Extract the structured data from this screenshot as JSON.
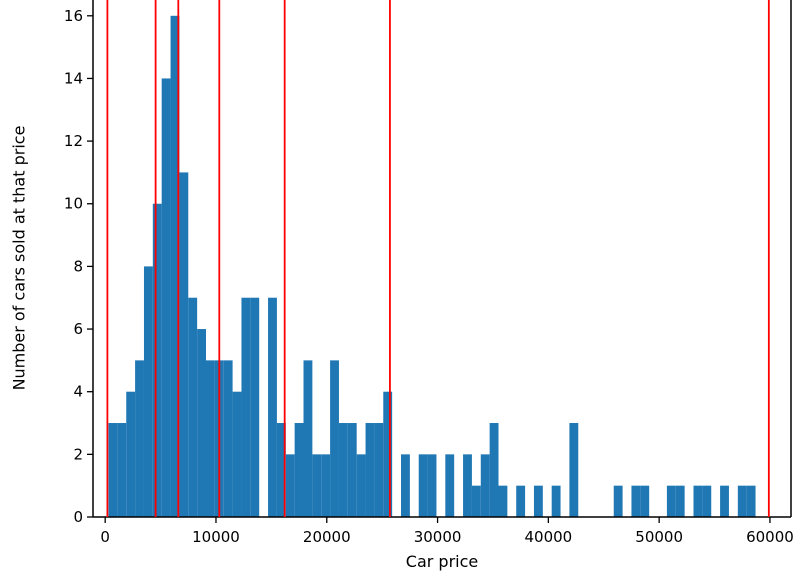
{
  "chart_data": {
    "type": "bar",
    "subtype": "histogram-with-vlines",
    "title": "",
    "xlabel": "Car price",
    "ylabel": "Number of cars sold at that price",
    "xlim": [
      -1100,
      61900
    ],
    "ylim": [
      0,
      16.6
    ],
    "grid": false,
    "legend": "none",
    "bar_color": "#1f77b4",
    "vline_color": "#ff0000",
    "bin_width": 800,
    "bars": [
      [
        300,
        3
      ],
      [
        1100,
        3
      ],
      [
        1900,
        4
      ],
      [
        2700,
        5
      ],
      [
        3500,
        8
      ],
      [
        4300,
        10
      ],
      [
        5100,
        14
      ],
      [
        5900,
        16
      ],
      [
        6700,
        11
      ],
      [
        7500,
        7
      ],
      [
        8300,
        6
      ],
      [
        9100,
        5
      ],
      [
        9900,
        5
      ],
      [
        10700,
        5
      ],
      [
        11500,
        4
      ],
      [
        12300,
        7
      ],
      [
        13100,
        7
      ],
      [
        14700,
        7
      ],
      [
        15500,
        3
      ],
      [
        16300,
        2
      ],
      [
        17100,
        3
      ],
      [
        17900,
        5
      ],
      [
        18700,
        2
      ],
      [
        19500,
        2
      ],
      [
        20300,
        5
      ],
      [
        21100,
        3
      ],
      [
        21900,
        3
      ],
      [
        22700,
        2
      ],
      [
        23500,
        3
      ],
      [
        24300,
        3
      ],
      [
        25100,
        4
      ],
      [
        26700,
        2
      ],
      [
        28300,
        2
      ],
      [
        29100,
        2
      ],
      [
        30700,
        2
      ],
      [
        32300,
        2
      ],
      [
        33100,
        1
      ],
      [
        33900,
        2
      ],
      [
        34700,
        3
      ],
      [
        35500,
        1
      ],
      [
        37100,
        1
      ],
      [
        38700,
        1
      ],
      [
        40300,
        1
      ],
      [
        41900,
        3
      ],
      [
        45900,
        1
      ],
      [
        47500,
        1
      ],
      [
        48300,
        1
      ],
      [
        50700,
        1
      ],
      [
        51500,
        1
      ],
      [
        53100,
        1
      ],
      [
        53900,
        1
      ],
      [
        55500,
        1
      ],
      [
        57100,
        1
      ],
      [
        57900,
        1
      ]
    ],
    "vlines": [
      200,
      4550,
      6600,
      10300,
      16200,
      25700,
      59900
    ],
    "xticks": [
      0,
      10000,
      20000,
      30000,
      40000,
      50000,
      60000
    ],
    "xtick_labels": [
      "0",
      "10000",
      "20000",
      "30000",
      "40000",
      "50000",
      "60000"
    ],
    "yticks": [
      0,
      2,
      4,
      6,
      8,
      10,
      12,
      14,
      16
    ],
    "ytick_labels": [
      "0",
      "2",
      "4",
      "6",
      "8",
      "10",
      "12",
      "14",
      "16"
    ]
  }
}
